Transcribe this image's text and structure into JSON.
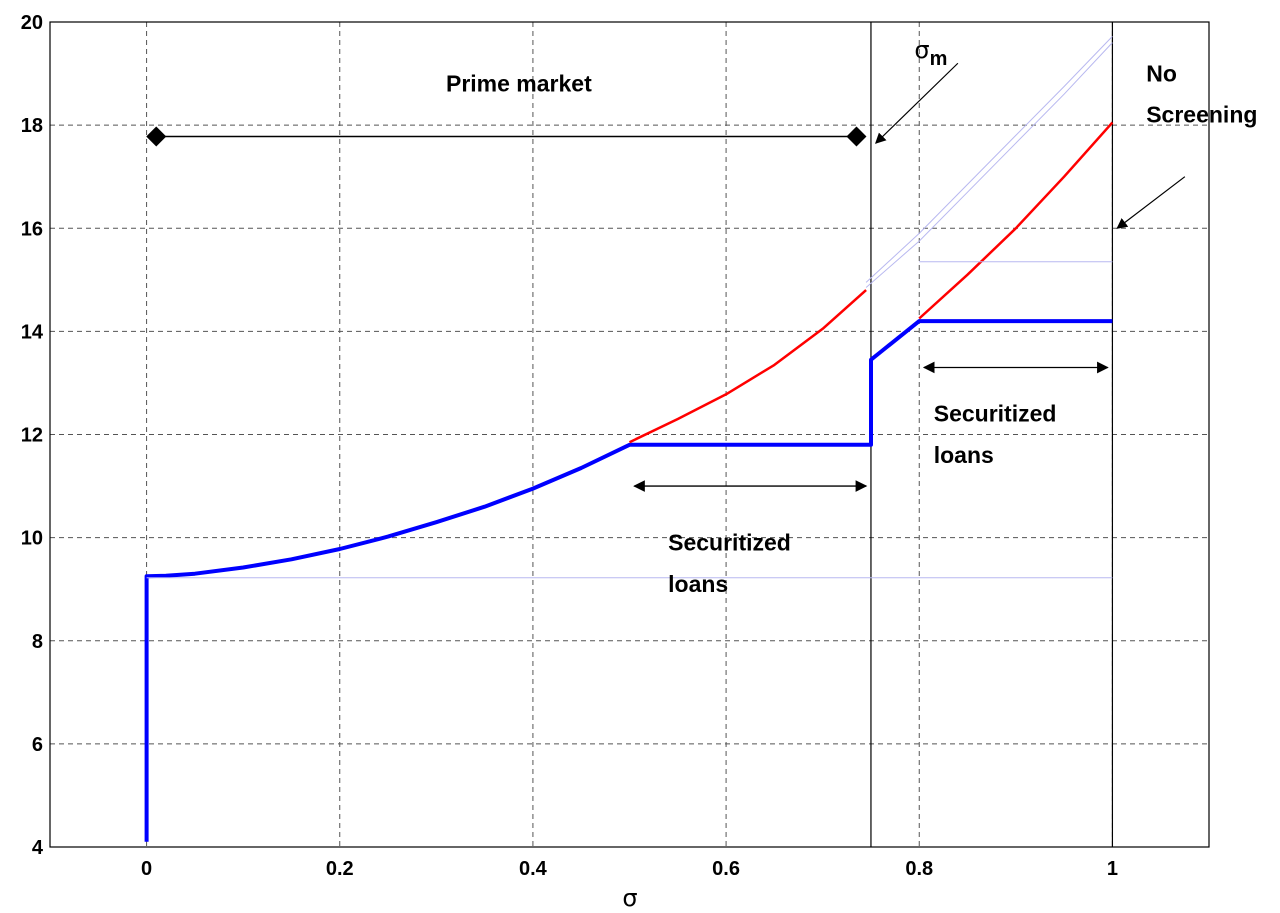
{
  "chart_data": {
    "type": "line",
    "title": "",
    "xlabel": "σ",
    "ylabel": "",
    "xlim": [
      -0.1,
      1.1
    ],
    "ylim": [
      4,
      20
    ],
    "xticks": [
      0,
      0.2,
      0.4,
      0.6,
      0.8,
      1
    ],
    "xtick_labels": [
      "0",
      "0.2",
      "0.4",
      "0.6",
      "0.8",
      "1"
    ],
    "yticks": [
      4,
      6,
      8,
      10,
      12,
      14,
      16,
      18,
      20
    ],
    "ytick_labels": [
      "4",
      "6",
      "8",
      "10",
      "12",
      "14",
      "16",
      "18",
      "20"
    ],
    "grid": true,
    "colors": {
      "blue": "#0000ff",
      "red": "#ff0000",
      "faint": "#b8b8f0",
      "black": "#000000"
    },
    "series": [
      {
        "color": "blue",
        "width": 4,
        "x": [
          0,
          0,
          0.02,
          0.05,
          0.1,
          0.15,
          0.2,
          0.25,
          0.3,
          0.35,
          0.4,
          0.45,
          0.5,
          0.75,
          0.75,
          0.76,
          0.8,
          0.8,
          1.0
        ],
        "y": [
          4.1,
          9.25,
          9.26,
          9.3,
          9.42,
          9.58,
          9.78,
          10.02,
          10.3,
          10.6,
          10.95,
          11.35,
          11.8,
          11.8,
          13.45,
          13.6,
          14.2,
          14.2,
          14.2
        ]
      },
      {
        "color": "red",
        "width": 2.5,
        "x": [
          0.5,
          0.55,
          0.6,
          0.65,
          0.7,
          0.745
        ],
        "y": [
          11.85,
          12.3,
          12.78,
          13.35,
          14.05,
          14.8
        ]
      },
      {
        "color": "red",
        "width": 2.5,
        "x": [
          0.8,
          0.85,
          0.9,
          0.95,
          1.0
        ],
        "y": [
          14.25,
          15.1,
          16.0,
          17.0,
          18.05
        ]
      },
      {
        "color": "faint",
        "width": 1,
        "x": [
          0.745,
          0.8,
          0.85,
          0.9,
          0.95,
          1.0
        ],
        "y": [
          14.85,
          15.75,
          16.7,
          17.65,
          18.6,
          19.6
        ]
      },
      {
        "color": "faint",
        "width": 1,
        "x": [
          0.745,
          0.8,
          0.85,
          0.9,
          0.95,
          1.0
        ],
        "y": [
          14.95,
          15.9,
          16.85,
          17.8,
          18.75,
          19.72
        ]
      },
      {
        "color": "faint",
        "width": 1,
        "x": [
          0.8,
          1.0
        ],
        "y": [
          15.35,
          15.35
        ]
      },
      {
        "color": "faint",
        "width": 1,
        "x": [
          0,
          1.0
        ],
        "y": [
          9.22,
          9.22
        ]
      },
      {
        "color": "black",
        "width": 1.5,
        "marker": "diamond",
        "x": [
          0.01,
          0.735
        ],
        "y": [
          17.78,
          17.78
        ]
      }
    ],
    "vertical_lines": [
      {
        "x": 0.75,
        "color": "black"
      },
      {
        "x": 1.0,
        "color": "black"
      }
    ],
    "double_arrows": [
      {
        "x1": 0.505,
        "x2": 0.745,
        "y": 11.0
      },
      {
        "x1": 0.805,
        "x2": 0.995,
        "y": 13.3
      }
    ],
    "pointer_arrows": [
      {
        "from": [
          0.84,
          19.2
        ],
        "to": [
          0.755,
          17.65
        ]
      },
      {
        "from": [
          1.075,
          17.0
        ],
        "to": [
          1.005,
          16.0
        ]
      }
    ],
    "annotations": [
      {
        "text": "Prime market",
        "x": 0.31,
        "y": 18.65
      },
      {
        "text": "Securitized",
        "x": 0.54,
        "y": 9.75
      },
      {
        "text": "loans",
        "x": 0.54,
        "y": 8.95
      },
      {
        "text": "Securitized",
        "x": 0.815,
        "y": 12.25
      },
      {
        "text": "loans",
        "x": 0.815,
        "y": 11.45
      },
      {
        "text": "No",
        "x": 1.035,
        "y": 18.85
      },
      {
        "text": "Screening",
        "x": 1.035,
        "y": 18.05
      }
    ],
    "sigma_m_label": {
      "main": "σ",
      "sub": "m",
      "x": 0.795,
      "y": 19.3
    }
  }
}
